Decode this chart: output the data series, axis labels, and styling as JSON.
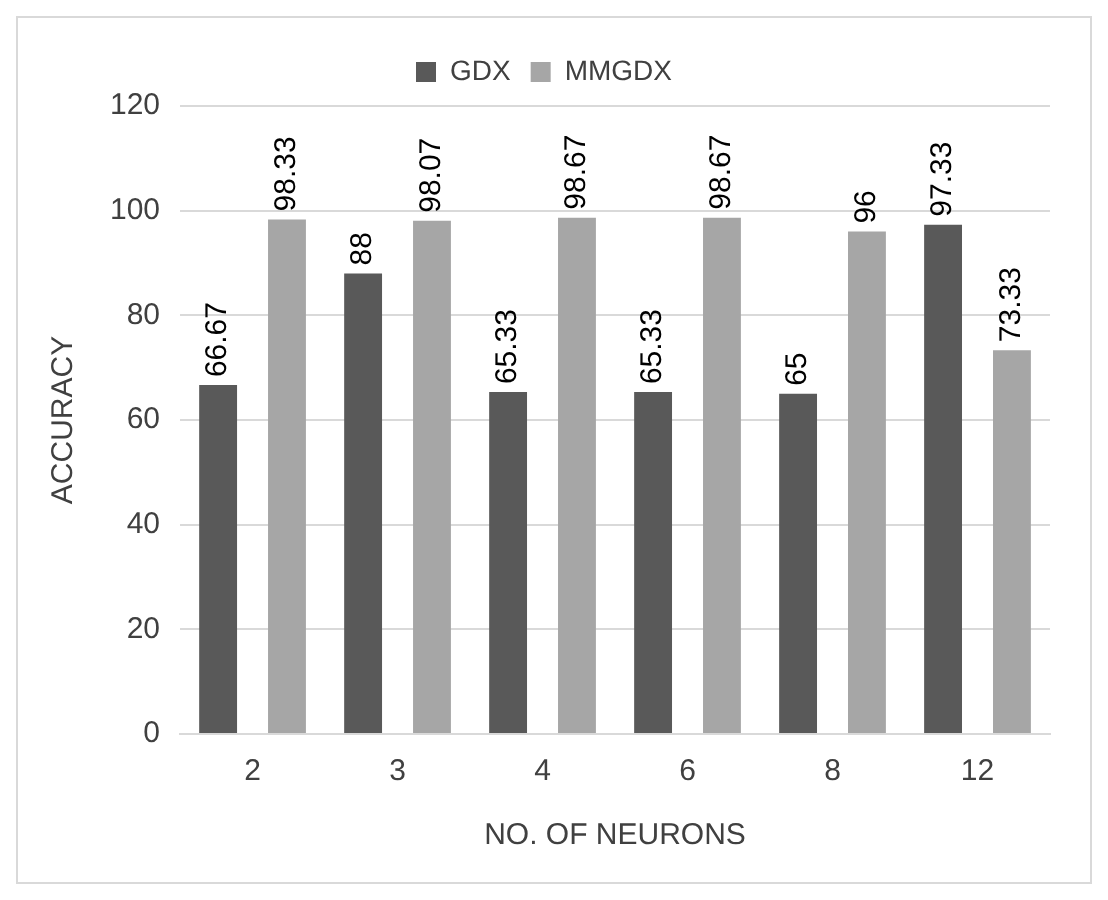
{
  "chart_data": {
    "type": "bar",
    "xlabel": "NO. OF NEURONS",
    "ylabel": "ACCURACY",
    "categories": [
      "2",
      "3",
      "4",
      "6",
      "8",
      "12"
    ],
    "series": [
      {
        "name": "GDX",
        "color": "#595959",
        "values": [
          66.67,
          88,
          65.33,
          65.33,
          65,
          97.33
        ]
      },
      {
        "name": "MMGDX",
        "color": "#a6a6a6",
        "values": [
          98.33,
          98.07,
          98.67,
          98.67,
          96,
          73.33
        ]
      }
    ],
    "ylim": [
      0,
      120
    ],
    "yticks": [
      0,
      20,
      40,
      60,
      80,
      100,
      120
    ],
    "grid": "y",
    "legend": "top",
    "data_labels": true
  }
}
